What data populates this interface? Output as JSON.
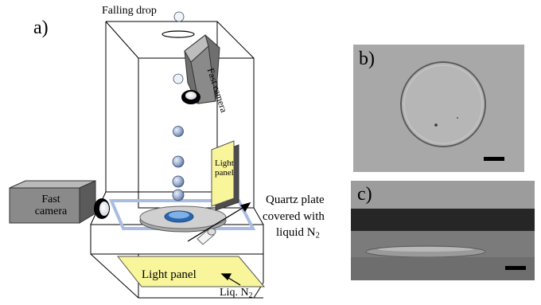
{
  "panel_a": {
    "letter": "a)",
    "falling_drop": "Falling drop",
    "fast_camera_top": "Fast camera",
    "fast_camera_side": "Fast camera",
    "light_panel_side": "Light panel",
    "quartz_line1": "Quartz plate",
    "quartz_line2": "covered with",
    "quartz_line3": "liquid N",
    "quartz_sub": "2",
    "light_panel_bottom": "Light panel",
    "liq_n2": "Liq. N",
    "liq_n2_sub": "2"
  },
  "panel_b": {
    "letter": "b)"
  },
  "panel_c": {
    "letter": "c)"
  },
  "colors": {
    "light_panel": "#f8f59a",
    "camera_grey": "#7a7a7a",
    "drop_blue": "#8fa3c8",
    "plate_blue": "#9bb4de",
    "photo_b_bg": "#a9a9a9",
    "photo_c_bg": "#7d7d7d"
  }
}
